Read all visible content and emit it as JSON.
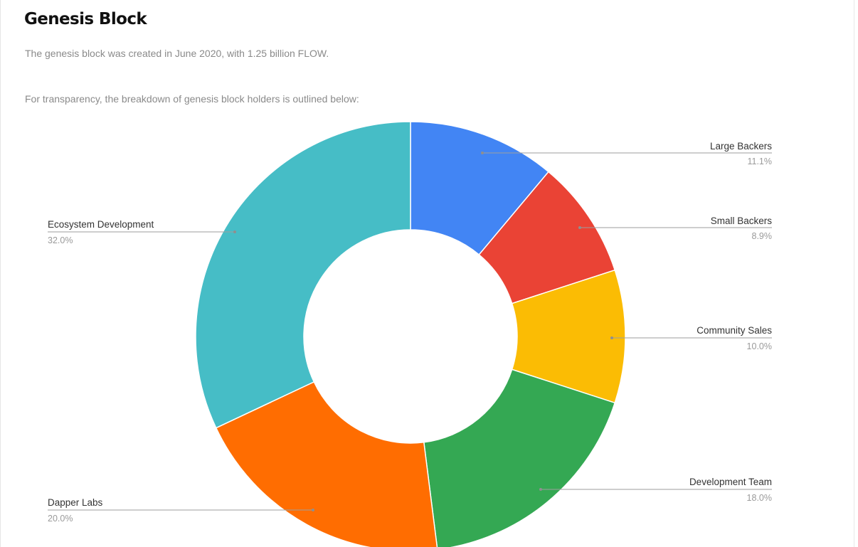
{
  "header": {
    "title": "Genesis Block",
    "intro": "The genesis block was created in June 2020, with 1.25 billion FLOW.",
    "transparency_note": "For transparency, the breakdown of genesis block holders is outlined below:"
  },
  "chart_data": {
    "type": "pie",
    "variant": "donut",
    "slices": [
      {
        "label": "Large Backers",
        "value": 11.1,
        "pct_label": "11.1%",
        "color": "#4285f4"
      },
      {
        "label": "Small Backers",
        "value": 8.9,
        "pct_label": "8.9%",
        "color": "#ea4335"
      },
      {
        "label": "Community Sales",
        "value": 10.0,
        "pct_label": "10.0%",
        "color": "#fbbc04"
      },
      {
        "label": "Development Team",
        "value": 18.0,
        "pct_label": "18.0%",
        "color": "#34a853"
      },
      {
        "label": "Dapper Labs",
        "value": 20.0,
        "pct_label": "20.0%",
        "color": "#ff6d01"
      },
      {
        "label": "Ecosystem Development",
        "value": 32.0,
        "pct_label": "32.0%",
        "color": "#46bdc6"
      }
    ],
    "legend": "callout-labels"
  }
}
